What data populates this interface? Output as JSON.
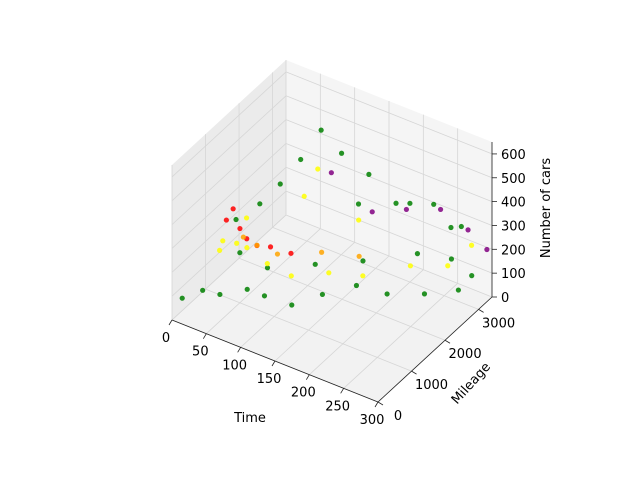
{
  "chart_data": {
    "type": "scatter",
    "projection": "3d",
    "title": "",
    "xlabel": "Time",
    "ylabel": "Mileage",
    "zlabel": "Number of cars",
    "xlim": [
      0,
      300
    ],
    "ylim": [
      0,
      3400
    ],
    "zlim": [
      0,
      650
    ],
    "xticks": [
      "0",
      "50",
      "100",
      "150",
      "200",
      "250",
      "300"
    ],
    "yticks": [
      "0",
      "1000",
      "2000",
      "3000"
    ],
    "zticks": [
      "0",
      "100",
      "200",
      "300",
      "400",
      "500",
      "600"
    ],
    "grid": true,
    "legend": "none",
    "point_colors": [
      "green",
      "yellow",
      "red",
      "purple",
      "orange"
    ],
    "series": [
      {
        "color": "#008000",
        "points": [
          [
            10,
            100,
            90
          ],
          [
            30,
            300,
            120
          ],
          [
            60,
            200,
            150
          ],
          [
            90,
            400,
            180
          ],
          [
            120,
            300,
            200
          ],
          [
            150,
            500,
            170
          ],
          [
            180,
            800,
            210
          ],
          [
            210,
            1200,
            230
          ],
          [
            240,
            1500,
            190
          ],
          [
            270,
            2000,
            160
          ],
          [
            295,
            2500,
            140
          ],
          [
            290,
            3000,
            130
          ],
          [
            250,
            3200,
            260
          ],
          [
            200,
            3000,
            330
          ],
          [
            150,
            2800,
            420
          ],
          [
            120,
            2600,
            500
          ],
          [
            100,
            2400,
            600
          ],
          [
            80,
            2200,
            480
          ],
          [
            60,
            2000,
            380
          ],
          [
            40,
            1800,
            300
          ],
          [
            20,
            1500,
            250
          ],
          [
            50,
            1000,
            210
          ],
          [
            100,
            800,
            230
          ],
          [
            150,
            1200,
            250
          ],
          [
            200,
            1600,
            270
          ],
          [
            250,
            2200,
            280
          ],
          [
            280,
            2600,
            240
          ],
          [
            270,
            3100,
            300
          ],
          [
            220,
            3300,
            310
          ],
          [
            170,
            3200,
            270
          ],
          [
            130,
            2900,
            260
          ]
        ]
      },
      {
        "color": "#ffff00",
        "points": [
          [
            40,
            600,
            260
          ],
          [
            60,
            700,
            300
          ],
          [
            70,
            800,
            280
          ],
          [
            90,
            1000,
            210
          ],
          [
            120,
            1100,
            180
          ],
          [
            160,
            1400,
            200
          ],
          [
            190,
            1800,
            170
          ],
          [
            230,
            2400,
            180
          ],
          [
            260,
            2900,
            150
          ],
          [
            100,
            2300,
            450
          ],
          [
            90,
            2100,
            350
          ],
          [
            30,
            900,
            250
          ],
          [
            50,
            1200,
            330
          ],
          [
            140,
            2700,
            230
          ],
          [
            280,
            3200,
            220
          ]
        ]
      },
      {
        "color": "#ff0000",
        "points": [
          [
            45,
            700,
            380
          ],
          [
            50,
            800,
            420
          ],
          [
            55,
            900,
            330
          ],
          [
            60,
            1000,
            280
          ],
          [
            80,
            1300,
            230
          ],
          [
            100,
            1500,
            200
          ],
          [
            70,
            1100,
            250
          ]
        ]
      },
      {
        "color": "#800080",
        "points": [
          [
            150,
            2900,
            250
          ],
          [
            190,
            3100,
            280
          ],
          [
            230,
            3300,
            300
          ],
          [
            270,
            3300,
            260
          ],
          [
            295,
            3350,
            200
          ],
          [
            110,
            2500,
            420
          ]
        ]
      },
      {
        "color": "#ffa500",
        "points": [
          [
            60,
            900,
            300
          ],
          [
            75,
            1000,
            270
          ],
          [
            95,
            1200,
            230
          ],
          [
            130,
            1800,
            200
          ],
          [
            170,
            2100,
            190
          ]
        ]
      }
    ]
  }
}
